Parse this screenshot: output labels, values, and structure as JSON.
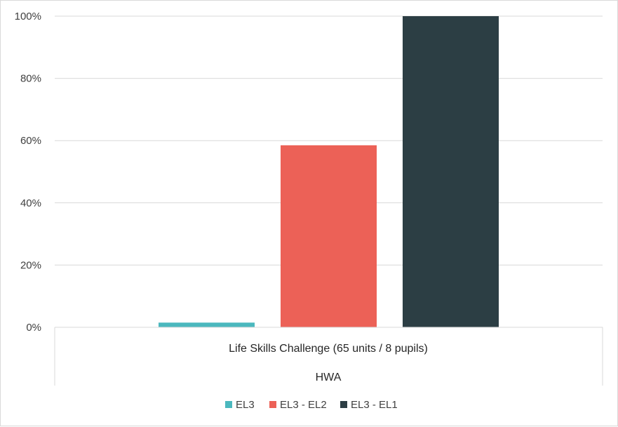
{
  "chart_data": {
    "type": "bar",
    "categories": [
      "Life Skills Challenge (65 units / 8 pupils)"
    ],
    "group_label": "HWA",
    "series": [
      {
        "name": "EL3",
        "values": [
          1.5
        ],
        "color": "#4bb8be"
      },
      {
        "name": "EL3 - EL2",
        "values": [
          58.5
        ],
        "color": "#ec6157"
      },
      {
        "name": "EL3 - EL1",
        "values": [
          100
        ],
        "color": "#2c3e44"
      }
    ],
    "yticks": [
      "0%",
      "20%",
      "40%",
      "60%",
      "80%",
      "100%"
    ],
    "ylim": [
      0,
      100
    ],
    "grid": true,
    "legend_position": "bottom"
  }
}
